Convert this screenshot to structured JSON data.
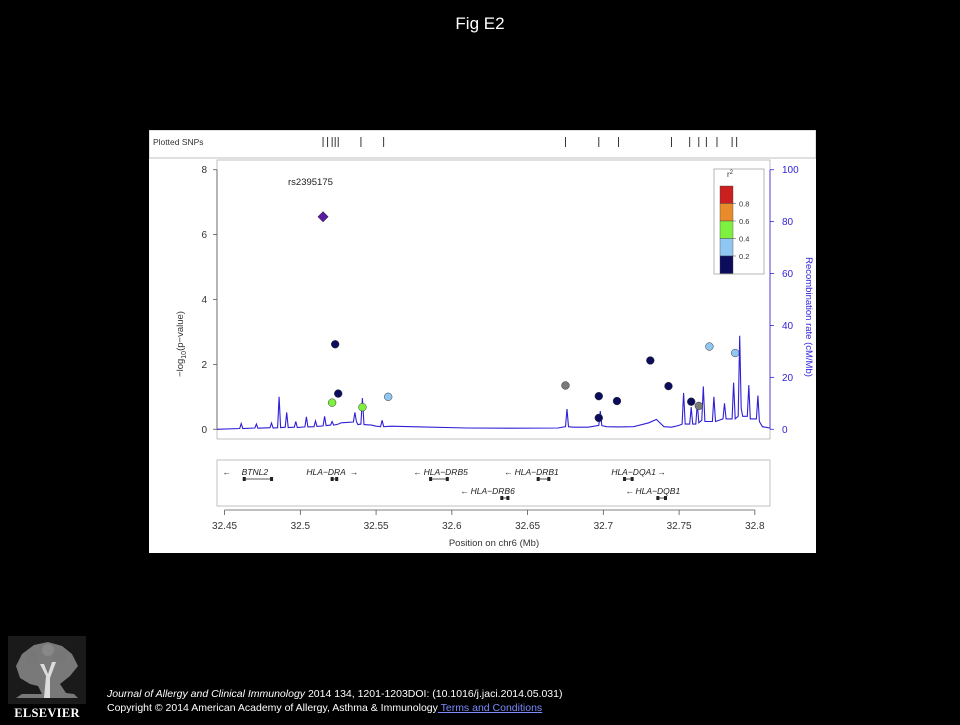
{
  "slide": {
    "title": "Fig E2"
  },
  "chart_data": {
    "type": "scatter",
    "title": "",
    "plotted_snps_label": "Plotted SNPs",
    "snp_track_positions": [
      32.515,
      32.518,
      32.521,
      32.523,
      32.525,
      32.54,
      32.555,
      32.675,
      32.697,
      32.71,
      32.745,
      32.757,
      32.763,
      32.768,
      32.775,
      32.785,
      32.788
    ],
    "lead_snp_label": "rs2395175",
    "xlabel": "Position on chr6 (Mb)",
    "ylabel": "−log10(p−value)",
    "ylabel_parts": {
      "prefix": "−log",
      "sub": "10",
      "suffix": "(p−value)"
    },
    "y2label": "Recombination rate (cM/Mb)",
    "xlim": [
      32.445,
      32.81
    ],
    "ylim": [
      -0.3,
      8.3
    ],
    "y2lim": [
      -3.75,
      103.75
    ],
    "xticks": [
      32.45,
      32.5,
      32.55,
      32.6,
      32.65,
      32.7,
      32.75,
      32.8
    ],
    "xtick_labels": [
      "32.45",
      "32.5",
      "32.55",
      "32.6",
      "32.65",
      "32.7",
      "32.75",
      "32.8"
    ],
    "yticks": [
      0,
      2,
      4,
      6,
      8
    ],
    "ytick_labels": [
      "0",
      "2",
      "4",
      "6",
      "8"
    ],
    "y2ticks": [
      0,
      20,
      40,
      60,
      80,
      100
    ],
    "y2tick_labels": [
      "0",
      "20",
      "40",
      "60",
      "80",
      "100"
    ],
    "legend": {
      "title_base": "r",
      "title_sup": "2",
      "position": "top-right",
      "bins": [
        {
          "label": "0.8",
          "color": "#cc1f1f"
        },
        {
          "label": "0.6",
          "color": "#e98a2b"
        },
        {
          "label": "0.4",
          "color": "#7ef03f"
        },
        {
          "label": "0.2",
          "color": "#90c7f2"
        },
        {
          "label": "",
          "color": "#0c0c5c"
        }
      ]
    },
    "colors": {
      "lead": "#5b1c9f",
      "r2_lt_0.2": "#0c0c5c",
      "r2_0.2_0.4": "#90c7f2",
      "r2_0.4_0.6": "#7ef03f",
      "no_ld": "#7a7a7a",
      "recombination_line": "#2f1fd6"
    },
    "points": [
      {
        "x": 32.515,
        "y": 6.55,
        "shape": "diamond",
        "color": "#5b1c9f",
        "lead": true
      },
      {
        "x": 32.523,
        "y": 2.62,
        "shape": "circle",
        "color": "#0c0c5c"
      },
      {
        "x": 32.525,
        "y": 1.1,
        "shape": "circle",
        "color": "#0c0c5c"
      },
      {
        "x": 32.521,
        "y": 0.82,
        "shape": "circle",
        "color": "#7ef03f"
      },
      {
        "x": 32.541,
        "y": 0.68,
        "shape": "circle",
        "color": "#7ef03f"
      },
      {
        "x": 32.558,
        "y": 1.0,
        "shape": "circle",
        "color": "#90c7f2"
      },
      {
        "x": 32.675,
        "y": 1.35,
        "shape": "circle",
        "color": "#7a7a7a"
      },
      {
        "x": 32.697,
        "y": 1.02,
        "shape": "circle",
        "color": "#0c0c5c"
      },
      {
        "x": 32.697,
        "y": 0.35,
        "shape": "circle",
        "color": "#0c0c5c"
      },
      {
        "x": 32.709,
        "y": 0.87,
        "shape": "circle",
        "color": "#0c0c5c"
      },
      {
        "x": 32.731,
        "y": 2.12,
        "shape": "circle",
        "color": "#0c0c5c"
      },
      {
        "x": 32.743,
        "y": 1.33,
        "shape": "circle",
        "color": "#0c0c5c"
      },
      {
        "x": 32.758,
        "y": 0.85,
        "shape": "circle",
        "color": "#0c0c5c"
      },
      {
        "x": 32.763,
        "y": 0.72,
        "shape": "circle",
        "color": "#7a7a7a"
      },
      {
        "x": 32.77,
        "y": 2.55,
        "shape": "circle",
        "color": "#90c7f2"
      },
      {
        "x": 32.787,
        "y": 2.35,
        "shape": "circle",
        "color": "#90c7f2"
      }
    ],
    "recombination_rate": [
      [
        32.445,
        0
      ],
      [
        32.46,
        0.3
      ],
      [
        32.461,
        2.2
      ],
      [
        32.462,
        0.3
      ],
      [
        32.47,
        0.5
      ],
      [
        32.471,
        2.0
      ],
      [
        32.472,
        0.4
      ],
      [
        32.48,
        0.6
      ],
      [
        32.481,
        2.4
      ],
      [
        32.482,
        0.5
      ],
      [
        32.485,
        0.6
      ],
      [
        32.486,
        12.5
      ],
      [
        32.487,
        0.6
      ],
      [
        32.49,
        0.8
      ],
      [
        32.491,
        6.5
      ],
      [
        32.492,
        0.7
      ],
      [
        32.496,
        0.8
      ],
      [
        32.497,
        3.0
      ],
      [
        32.498,
        0.7
      ],
      [
        32.503,
        0.9
      ],
      [
        32.504,
        4.8
      ],
      [
        32.505,
        0.9
      ],
      [
        32.509,
        1.0
      ],
      [
        32.51,
        3.2
      ],
      [
        32.511,
        1.1
      ],
      [
        32.515,
        1.3
      ],
      [
        32.516,
        5.0
      ],
      [
        32.517,
        1.4
      ],
      [
        32.52,
        1.6
      ],
      [
        32.521,
        3.0
      ],
      [
        32.522,
        1.6
      ],
      [
        32.525,
        2.0
      ],
      [
        32.527,
        2.5
      ],
      [
        32.535,
        2.8
      ],
      [
        32.536,
        6.5
      ],
      [
        32.537,
        3.0
      ],
      [
        32.538,
        1.8
      ],
      [
        32.54,
        2.0
      ],
      [
        32.541,
        12.0
      ],
      [
        32.542,
        1.8
      ],
      [
        32.547,
        1.6
      ],
      [
        32.55,
        1.2
      ],
      [
        32.553,
        1.0
      ],
      [
        32.554,
        3.5
      ],
      [
        32.555,
        1.0
      ],
      [
        32.56,
        1.2
      ],
      [
        32.58,
        0.9
      ],
      [
        32.61,
        0.5
      ],
      [
        32.64,
        0.4
      ],
      [
        32.67,
        0.5
      ],
      [
        32.675,
        1.0
      ],
      [
        32.676,
        7.8
      ],
      [
        32.677,
        1.0
      ],
      [
        32.68,
        0.8
      ],
      [
        32.69,
        0.8
      ],
      [
        32.697,
        1.5
      ],
      [
        32.698,
        7.0
      ],
      [
        32.699,
        1.4
      ],
      [
        32.702,
        1.0
      ],
      [
        32.71,
        0.9
      ],
      [
        32.72,
        1.0
      ],
      [
        32.73,
        2.5
      ],
      [
        32.735,
        3.8
      ],
      [
        32.74,
        1.0
      ],
      [
        32.745,
        0.8
      ],
      [
        32.75,
        1.5
      ],
      [
        32.752,
        2.0
      ],
      [
        32.753,
        14.0
      ],
      [
        32.754,
        2.0
      ],
      [
        32.757,
        2.0
      ],
      [
        32.758,
        8.5
      ],
      [
        32.759,
        2.0
      ],
      [
        32.761,
        2.0
      ],
      [
        32.762,
        10.0
      ],
      [
        32.763,
        2.5
      ],
      [
        32.765,
        3.5
      ],
      [
        32.766,
        16.5
      ],
      [
        32.767,
        3.0
      ],
      [
        32.772,
        3.0
      ],
      [
        32.773,
        12.5
      ],
      [
        32.774,
        3.0
      ],
      [
        32.779,
        4.0
      ],
      [
        32.78,
        10.0
      ],
      [
        32.781,
        4.0
      ],
      [
        32.785,
        4.0
      ],
      [
        32.786,
        18.0
      ],
      [
        32.787,
        4.0
      ],
      [
        32.789,
        5.0
      ],
      [
        32.79,
        36.0
      ],
      [
        32.791,
        8.0
      ],
      [
        32.792,
        5.0
      ],
      [
        32.795,
        5.0
      ],
      [
        32.796,
        17.0
      ],
      [
        32.797,
        4.0
      ],
      [
        32.801,
        4.0
      ],
      [
        32.802,
        13.0
      ],
      [
        32.803,
        3.0
      ],
      [
        32.805,
        1.0
      ],
      [
        32.81,
        0.5
      ]
    ],
    "genes": [
      {
        "name": "BTNL2",
        "start": 32.462,
        "end": 32.482,
        "strand": "-",
        "label_x": 32.47,
        "row": 0
      },
      {
        "name": "HLA−DRA",
        "start": 32.52,
        "end": 32.525,
        "strand": "+",
        "label_x": 32.517,
        "row": 0
      },
      {
        "name": "HLA−DRB5",
        "start": 32.585,
        "end": 32.598,
        "strand": "-",
        "label_x": 32.596,
        "row": 0
      },
      {
        "name": "HLA−DRB1",
        "start": 32.656,
        "end": 32.665,
        "strand": "-",
        "label_x": 32.656,
        "row": 0
      },
      {
        "name": "HLA−DQA1",
        "start": 32.713,
        "end": 32.72,
        "strand": "+",
        "label_x": 32.72,
        "row": 0
      },
      {
        "name": "HLA−DRB6",
        "start": 32.632,
        "end": 32.638,
        "strand": "-",
        "label_x": 32.627,
        "row": 1
      },
      {
        "name": "HLA−DQB1",
        "start": 32.735,
        "end": 32.742,
        "strand": "-",
        "label_x": 32.736,
        "row": 1
      }
    ]
  },
  "footer": {
    "journal": "Journal of Allergy and Clinical Immunology",
    "citation": " 2014 134, 1201-1203DOI: (10.1016/j.jaci.2014.05.031)",
    "copyright": "Copyright © 2014 American Academy of Allergy, Asthma & Immunology",
    "link_text": " Terms and Conditions"
  },
  "logo": {
    "text": "ELSEVIER",
    "icon": "elsevier-tree-logo"
  }
}
